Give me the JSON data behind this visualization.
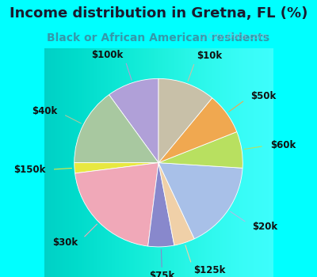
{
  "title": "Income distribution in Gretna, FL (%)",
  "subtitle": "Black or African American residents",
  "bg_cyan": "#00ffff",
  "bg_chart": "#e0f0e8",
  "watermark": "ⓘ City-Data.com",
  "slices": [
    {
      "label": "$100k",
      "value": 10.0,
      "color": "#b0a0d8"
    },
    {
      "label": "$40k",
      "value": 15.0,
      "color": "#a8c8a0"
    },
    {
      "label": "$150k",
      "value": 2.0,
      "color": "#e8e840"
    },
    {
      "label": "$30k",
      "value": 21.0,
      "color": "#f0a8b8"
    },
    {
      "label": "$75k",
      "value": 5.0,
      "color": "#8888cc"
    },
    {
      "label": "$125k",
      "value": 4.0,
      "color": "#f0d0a8"
    },
    {
      "label": "$20k",
      "value": 17.0,
      "color": "#a8c0e8"
    },
    {
      "label": "$60k",
      "value": 7.0,
      "color": "#b8e060"
    },
    {
      "label": "$50k",
      "value": 8.0,
      "color": "#f0a850"
    },
    {
      "label": "$10k",
      "value": 11.0,
      "color": "#c8c0a8"
    }
  ],
  "start_angle": 90,
  "title_fontsize": 13,
  "subtitle_fontsize": 10,
  "label_fontsize": 8.5
}
